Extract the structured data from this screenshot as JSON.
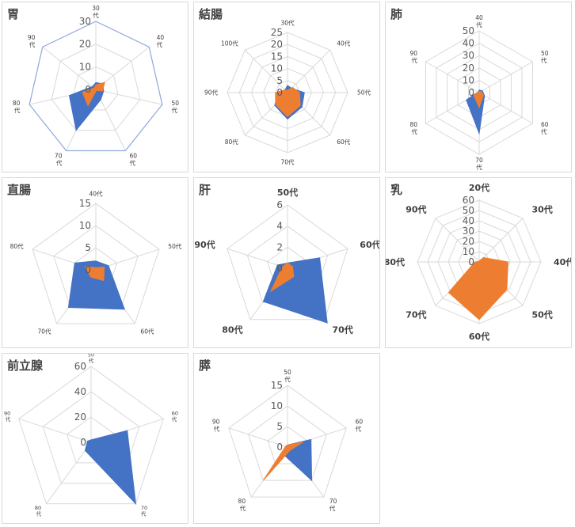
{
  "colors": {
    "series1": "#4472C4",
    "series2": "#ED7D31",
    "grid": "#d9d9d9",
    "text": "#595959"
  },
  "chart_data": [
    {
      "type": "radar",
      "title": "胃",
      "categories": [
        "30\n代",
        "40\n代",
        "50\n代",
        "60\n代",
        "70\n代",
        "80\n代",
        "90\n代"
      ],
      "ticks": [
        "0",
        "10",
        "20",
        "30"
      ],
      "ylim": [
        0,
        30
      ],
      "series": [
        {
          "values": [
            3,
            4,
            3.5,
            5,
            20,
            12,
            2
          ]
        },
        {
          "values": [
            2,
            5,
            3,
            0.5,
            8,
            6,
            1
          ]
        },
        {
          "values": [
            30,
            30,
            30,
            30,
            30,
            30,
            30
          ],
          "outline": true
        }
      ]
    },
    {
      "type": "radar",
      "title": "結腸",
      "categories": [
        "30代",
        "40代",
        "50代",
        "60代",
        "70代",
        "80代",
        "90代",
        "100代"
      ],
      "ticks": [
        "0",
        "5",
        "10",
        "15",
        "20",
        "25"
      ],
      "ylim": [
        0,
        25
      ],
      "series": [
        {
          "values": [
            3,
            2.5,
            7,
            8.5,
            11,
            7.5,
            4,
            1.5
          ]
        },
        {
          "values": [
            1,
            3,
            5,
            7.5,
            10,
            7,
            5,
            1.5
          ]
        }
      ]
    },
    {
      "type": "radar",
      "title": "肺",
      "categories": [
        "40\n代",
        "50\n代",
        "60\n代",
        "70\n代",
        "80\n代",
        "90\n代"
      ],
      "ticks": [
        "0",
        "10",
        "20",
        "30",
        "40",
        "50"
      ],
      "ylim": [
        0,
        50
      ],
      "series": [
        {
          "values": [
            2,
            3,
            5,
            33,
            12,
            1
          ]
        },
        {
          "values": [
            1,
            2,
            4,
            12,
            5,
            1
          ]
        }
      ]
    },
    {
      "type": "radar",
      "title": "直腸",
      "categories": [
        "40代",
        "50代",
        "60代",
        "70代",
        "80代"
      ],
      "ticks": [
        "0",
        "5",
        "10",
        "15"
      ],
      "ylim": [
        0,
        15
      ],
      "series": [
        {
          "values": [
            2,
            3,
            11,
            10.5,
            5
          ]
        },
        {
          "values": [
            0.5,
            2,
            3,
            2,
            2.5
          ]
        }
      ]
    },
    {
      "type": "radar",
      "title": "肝",
      "categories": [
        "50代",
        "60代",
        "70代",
        "80代",
        "90代"
      ],
      "ticks": [
        "0",
        "2",
        "4",
        "6"
      ],
      "ylim": [
        0,
        6
      ],
      "series": [
        {
          "values": [
            0.5,
            3.2,
            6.4,
            3.9,
            1
          ]
        },
        {
          "values": [
            0.5,
            0.5,
            1,
            2.7,
            0.5
          ]
        }
      ]
    },
    {
      "type": "radar",
      "title": "乳",
      "categories": [
        "20代",
        "30代",
        "40代",
        "50代",
        "60代",
        "70代",
        "80代",
        "90代"
      ],
      "ticks": [
        "0",
        "10",
        "20",
        "30",
        "40",
        "50",
        "60"
      ],
      "ylim": [
        0,
        60
      ],
      "series": [
        {
          "values": [
            0,
            0,
            0,
            0,
            0,
            0,
            0,
            0
          ]
        },
        {
          "values": [
            1,
            6,
            28,
            38,
            56,
            42,
            4,
            0.5
          ]
        }
      ]
    },
    {
      "type": "radar",
      "title": "前立腺",
      "categories": [
        "50\n代",
        "60\n代",
        "70\n代",
        "80\n代",
        "90\n代"
      ],
      "ticks": [
        "0",
        "20",
        "40",
        "60"
      ],
      "ylim": [
        0,
        60
      ],
      "series": [
        {
          "values": [
            2,
            30,
            60,
            8,
            3
          ]
        },
        {
          "values": [
            0,
            0,
            0,
            0,
            0
          ]
        }
      ]
    },
    {
      "type": "radar",
      "title": "膵",
      "categories": [
        "50\n代",
        "60\n代",
        "70\n代",
        "80\n代",
        "90\n代"
      ],
      "ticks": [
        "0",
        "5",
        "10",
        "15"
      ],
      "ylim": [
        0,
        15
      ],
      "series": [
        {
          "values": [
            0.5,
            6,
            10,
            2,
            0.5
          ]
        },
        {
          "values": [
            0.5,
            4,
            1,
            10,
            0.5
          ]
        }
      ]
    }
  ]
}
